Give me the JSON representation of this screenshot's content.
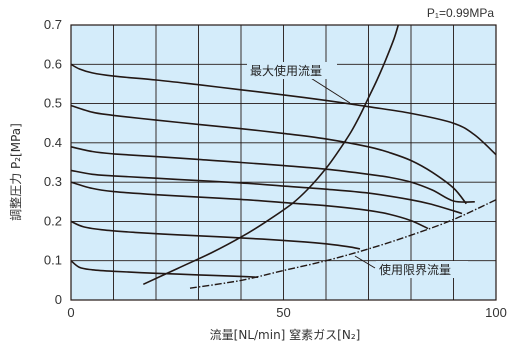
{
  "chart_data": {
    "type": "line",
    "title": "",
    "xlabel": "流量[NL/min]  窒素ガス[N₂]",
    "ylabel": "調整圧力 P₂[MPa]",
    "condition_note": "P₁=0.99MPa",
    "xlim": [
      0,
      100
    ],
    "ylim": [
      0,
      0.7
    ],
    "x_ticks": [
      0,
      50,
      100
    ],
    "x_tick_labels": [
      "0",
      "50",
      "100"
    ],
    "y_ticks": [
      0,
      0.1,
      0.2,
      0.3,
      0.4,
      0.5,
      0.6,
      0.7
    ],
    "y_tick_labels": [
      "0",
      "0.1",
      "0.2",
      "0.3",
      "0.4",
      "0.5",
      "0.6",
      "0.7"
    ],
    "grid": true,
    "background_color": "#d4ecfa",
    "line_color": "#231815",
    "pressure_curves": [
      {
        "x": [
          0,
          2,
          5,
          10,
          20,
          30,
          40,
          50,
          60,
          70,
          80,
          90,
          95,
          100
        ],
        "y": [
          0.6,
          0.588,
          0.578,
          0.57,
          0.56,
          0.548,
          0.535,
          0.522,
          0.508,
          0.492,
          0.475,
          0.45,
          0.42,
          0.37
        ]
      },
      {
        "x": [
          0,
          5,
          10,
          20,
          30,
          40,
          50,
          60,
          70,
          75,
          80,
          85,
          90,
          93
        ],
        "y": [
          0.495,
          0.478,
          0.47,
          0.458,
          0.447,
          0.436,
          0.424,
          0.41,
          0.39,
          0.375,
          0.355,
          0.325,
          0.285,
          0.245
        ]
      },
      {
        "x": [
          0,
          5,
          10,
          20,
          30,
          40,
          50,
          60,
          70,
          75,
          80,
          85,
          90,
          95
        ],
        "y": [
          0.39,
          0.378,
          0.372,
          0.365,
          0.358,
          0.35,
          0.342,
          0.333,
          0.32,
          0.312,
          0.3,
          0.28,
          0.252,
          0.25
        ]
      },
      {
        "x": [
          0,
          5,
          10,
          20,
          30,
          40,
          50,
          60,
          70,
          80,
          85,
          90,
          92
        ],
        "y": [
          0.33,
          0.32,
          0.316,
          0.31,
          0.304,
          0.298,
          0.29,
          0.282,
          0.272,
          0.255,
          0.243,
          0.227,
          0.22
        ]
      },
      {
        "x": [
          0,
          5,
          10,
          20,
          30,
          40,
          50,
          60,
          70,
          75,
          80,
          84
        ],
        "y": [
          0.3,
          0.284,
          0.276,
          0.268,
          0.262,
          0.256,
          0.248,
          0.24,
          0.228,
          0.218,
          0.202,
          0.182
        ]
      },
      {
        "x": [
          0,
          3,
          8,
          15,
          25,
          35,
          45,
          55,
          60,
          65,
          68
        ],
        "y": [
          0.2,
          0.186,
          0.178,
          0.172,
          0.166,
          0.161,
          0.155,
          0.148,
          0.143,
          0.136,
          0.13
        ]
      },
      {
        "x": [
          0,
          2,
          5,
          10,
          20,
          30,
          40,
          44
        ],
        "y": [
          0.1,
          0.083,
          0.077,
          0.073,
          0.068,
          0.064,
          0.06,
          0.058
        ]
      }
    ],
    "max_flow_curve": {
      "label": "最大使用流量",
      "x": [
        17,
        25,
        33,
        40,
        46,
        52,
        56,
        60,
        63,
        66,
        68,
        70,
        72,
        74,
        76,
        77
      ],
      "y": [
        0.04,
        0.08,
        0.12,
        0.16,
        0.2,
        0.245,
        0.285,
        0.335,
        0.38,
        0.43,
        0.47,
        0.515,
        0.56,
        0.61,
        0.665,
        0.7
      ]
    },
    "use_limit_curve": {
      "label": "使用限界流量",
      "x": [
        28,
        40,
        50,
        60,
        70,
        80,
        90,
        100
      ],
      "y": [
        0.03,
        0.05,
        0.075,
        0.1,
        0.13,
        0.165,
        0.205,
        0.255
      ]
    }
  }
}
